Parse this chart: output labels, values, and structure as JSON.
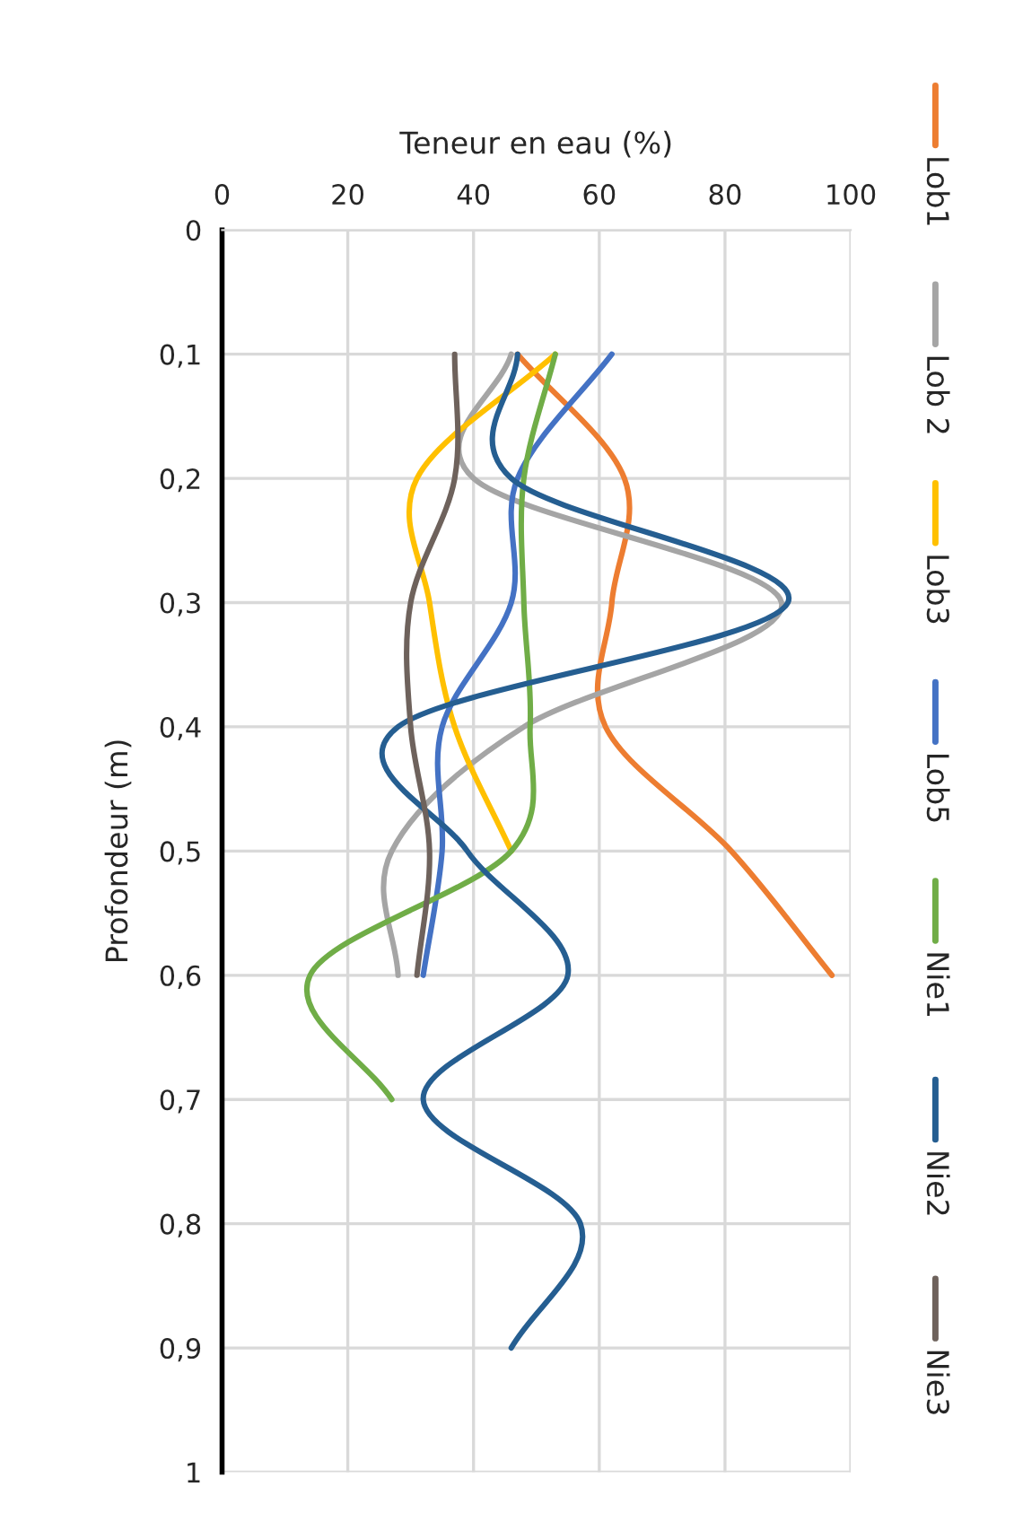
{
  "chart_data": {
    "type": "line",
    "xlabel": "Teneur en eau (%)",
    "ylabel": "Profondeur (m)",
    "xlim": [
      0,
      100
    ],
    "xticks": [
      0,
      20,
      40,
      60,
      80,
      100
    ],
    "ylim": [
      1,
      0
    ],
    "yticks": [
      0,
      {
        "value": 0.1,
        "label": "0,1"
      },
      {
        "value": 0.2,
        "label": "0,2"
      },
      {
        "value": 0.3,
        "label": "0,3"
      },
      {
        "value": 0.4,
        "label": "0,4"
      },
      {
        "value": 0.5,
        "label": "0,5"
      },
      {
        "value": 0.6,
        "label": "0,6"
      },
      {
        "value": 0.7,
        "label": "0,7"
      },
      {
        "value": 0.8,
        "label": "0,8"
      },
      {
        "value": 0.9,
        "label": "0,9"
      },
      1
    ],
    "grid": true,
    "legend": "right",
    "marker": "none",
    "line_style": "solid",
    "series": [
      {
        "name": "Lob1",
        "color": "#ed7d31",
        "x": [
          47,
          64,
          62,
          61,
          81,
          97
        ],
        "values": [
          0.1,
          0.2,
          0.3,
          0.4,
          0.5,
          0.6
        ]
      },
      {
        "name": "Lob 2",
        "color": "#a5a5a5",
        "x": [
          46,
          40,
          89,
          48,
          27,
          28
        ],
        "values": [
          0.1,
          0.2,
          0.3,
          0.4,
          0.5,
          0.6
        ]
      },
      {
        "name": "Lob3",
        "color": "#ffc000",
        "x": [
          53,
          31,
          33,
          37,
          46
        ],
        "values": [
          0.1,
          0.2,
          0.3,
          0.4,
          0.5
        ]
      },
      {
        "name": "Lob5",
        "color": "#4472c4",
        "x": [
          62,
          47,
          46,
          35,
          35,
          32
        ],
        "values": [
          0.1,
          0.2,
          0.3,
          0.4,
          0.5,
          0.6
        ]
      },
      {
        "name": "Nie1",
        "color": "#70ad47",
        "x": [
          53,
          48,
          48,
          49,
          46,
          14,
          27
        ],
        "values": [
          0.1,
          0.2,
          0.3,
          0.4,
          0.5,
          0.6,
          0.7
        ]
      },
      {
        "name": "Nie2",
        "color": "#255e91",
        "x": [
          47,
          46,
          90,
          28,
          39,
          55,
          32,
          57,
          46
        ],
        "values": [
          0.1,
          0.2,
          0.3,
          0.4,
          0.5,
          0.6,
          0.7,
          0.8,
          0.9
        ]
      },
      {
        "name": "Nie3",
        "color": "#6e625c",
        "x": [
          37,
          37,
          30,
          30,
          33,
          31
        ],
        "values": [
          0.1,
          0.2,
          0.3,
          0.4,
          0.5,
          0.6
        ]
      }
    ]
  }
}
